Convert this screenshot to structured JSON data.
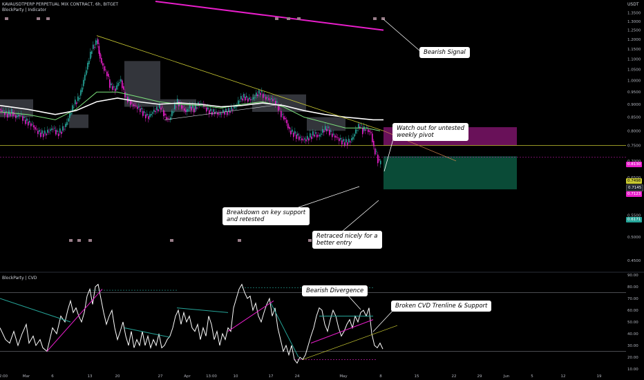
{
  "header": {
    "symbol": "KAVAUSDTPERP PERPETUAL MIX CONTRACT, 6h, BITGET",
    "indicator": "BlockParty | Indicator",
    "currency": "USDT"
  },
  "sub_header": "BlockParty | CVD",
  "annotations": {
    "bearish_signal": "Bearish Signal",
    "watch_out_1": "Watch out for untested",
    "watch_out_2": "weekly pivot",
    "breakdown_1": "Breakdown on key support",
    "breakdown_2": "and retested",
    "retraced_1": "Retraced nicely for a",
    "retraced_2": "better entry",
    "bearish_divergence": "Bearish Divergence",
    "broken_cvd": "Broken CVD Trenline & Support"
  },
  "price_labels": {
    "upper": "0.8130",
    "key_level": "0.7498",
    "last": "0.7145",
    "current": "0.7123",
    "target": "0.6171"
  },
  "colors": {
    "bull": "#26a69a",
    "bear": "#e91ecb",
    "ma": "#ffffff",
    "ma2": "#7ee57e",
    "trend": "#c8c832",
    "signal": "#e91ecb",
    "short_zone": "#7b1468",
    "target_zone": "#0b4f3a"
  },
  "chart_data": [
    {
      "type": "candlestick",
      "title": "KAVAUSDTPERP PERPETUAL MIX CONTRACT, 6h, BITGET",
      "ylabel": "USDT",
      "y_scale": "log",
      "ylim": [
        0.43,
        1.42
      ],
      "y_ticks": [
        1.35,
        1.3,
        1.25,
        1.2,
        1.15,
        1.1,
        1.05,
        1.0,
        0.95,
        0.9,
        0.85,
        0.8,
        0.75,
        0.7,
        0.65,
        0.6,
        0.55,
        0.5,
        0.45
      ],
      "x_ticks": [
        "2:00",
        "Mar",
        "6",
        "13",
        "20",
        "27",
        "Apr",
        "13:00",
        "10",
        "17",
        "24",
        "May",
        "8",
        "15",
        "22",
        "29",
        "Jun",
        "5",
        "12",
        "19"
      ],
      "price_path": [
        [
          0,
          0.88
        ],
        [
          6,
          0.87
        ],
        [
          12,
          0.86
        ],
        [
          18,
          0.87
        ],
        [
          24,
          0.85
        ],
        [
          30,
          0.86
        ],
        [
          36,
          0.84
        ],
        [
          42,
          0.83
        ],
        [
          48,
          0.82
        ],
        [
          54,
          0.8
        ],
        [
          60,
          0.79
        ],
        [
          66,
          0.79
        ],
        [
          72,
          0.8
        ],
        [
          78,
          0.81
        ],
        [
          84,
          0.79
        ],
        [
          90,
          0.8
        ],
        [
          96,
          0.82
        ],
        [
          102,
          0.86
        ],
        [
          108,
          0.9
        ],
        [
          114,
          0.92
        ],
        [
          118,
          0.95
        ],
        [
          122,
          1.0
        ],
        [
          126,
          1.05
        ],
        [
          130,
          1.1
        ],
        [
          134,
          1.15
        ],
        [
          138,
          1.17
        ],
        [
          141,
          1.2
        ],
        [
          144,
          1.13
        ],
        [
          148,
          1.08
        ],
        [
          152,
          1.05
        ],
        [
          156,
          1.03
        ],
        [
          160,
          0.98
        ],
        [
          164,
          0.97
        ],
        [
          168,
          0.96
        ],
        [
          172,
          0.99
        ],
        [
          176,
          1.0
        ],
        [
          180,
          0.95
        ],
        [
          186,
          0.92
        ],
        [
          192,
          0.9
        ],
        [
          198,
          0.89
        ],
        [
          204,
          0.88
        ],
        [
          210,
          0.86
        ],
        [
          216,
          0.85
        ],
        [
          222,
          0.87
        ],
        [
          228,
          0.88
        ],
        [
          234,
          0.89
        ],
        [
          240,
          0.85
        ],
        [
          246,
          0.84
        ],
        [
          252,
          0.88
        ],
        [
          258,
          0.91
        ],
        [
          264,
          0.89
        ],
        [
          270,
          0.87
        ],
        [
          276,
          0.89
        ],
        [
          282,
          0.88
        ],
        [
          288,
          0.9
        ],
        [
          294,
          0.9
        ],
        [
          300,
          0.88
        ],
        [
          306,
          0.87
        ],
        [
          312,
          0.87
        ],
        [
          318,
          0.86
        ],
        [
          324,
          0.87
        ],
        [
          330,
          0.87
        ],
        [
          336,
          0.88
        ],
        [
          342,
          0.89
        ],
        [
          348,
          0.92
        ],
        [
          354,
          0.93
        ],
        [
          360,
          0.92
        ],
        [
          366,
          0.92
        ],
        [
          372,
          0.94
        ],
        [
          378,
          0.95
        ],
        [
          384,
          0.93
        ],
        [
          390,
          0.92
        ],
        [
          396,
          0.92
        ],
        [
          402,
          0.9
        ],
        [
          408,
          0.86
        ],
        [
          414,
          0.84
        ],
        [
          420,
          0.8
        ],
        [
          426,
          0.79
        ],
        [
          432,
          0.78
        ],
        [
          438,
          0.77
        ],
        [
          444,
          0.77
        ],
        [
          450,
          0.78
        ],
        [
          456,
          0.79
        ],
        [
          462,
          0.78
        ],
        [
          468,
          0.8
        ],
        [
          474,
          0.81
        ],
        [
          480,
          0.79
        ],
        [
          486,
          0.78
        ],
        [
          492,
          0.77
        ],
        [
          498,
          0.76
        ],
        [
          504,
          0.76
        ],
        [
          510,
          0.77
        ],
        [
          514,
          0.79
        ],
        [
          518,
          0.81
        ],
        [
          522,
          0.82
        ],
        [
          526,
          0.8
        ],
        [
          530,
          0.81
        ],
        [
          534,
          0.8
        ],
        [
          538,
          0.79
        ],
        [
          542,
          0.74
        ],
        [
          546,
          0.72
        ],
        [
          550,
          0.69
        ],
        [
          552,
          0.712
        ]
      ],
      "moving_average": [
        [
          0,
          0.895
        ],
        [
          40,
          0.88
        ],
        [
          80,
          0.86
        ],
        [
          110,
          0.875
        ],
        [
          140,
          0.91
        ],
        [
          170,
          0.925
        ],
        [
          200,
          0.91
        ],
        [
          230,
          0.9
        ],
        [
          260,
          0.905
        ],
        [
          290,
          0.9
        ],
        [
          320,
          0.89
        ],
        [
          350,
          0.895
        ],
        [
          380,
          0.905
        ],
        [
          410,
          0.895
        ],
        [
          440,
          0.875
        ],
        [
          470,
          0.86
        ],
        [
          500,
          0.85
        ],
        [
          520,
          0.845
        ],
        [
          540,
          0.84
        ],
        [
          555,
          0.84
        ]
      ],
      "moving_average_2": [
        [
          0,
          0.87
        ],
        [
          40,
          0.86
        ],
        [
          80,
          0.84
        ],
        [
          110,
          0.88
        ],
        [
          140,
          0.95
        ],
        [
          170,
          0.95
        ],
        [
          200,
          0.93
        ],
        [
          230,
          0.91
        ],
        [
          260,
          0.9
        ],
        [
          290,
          0.895
        ],
        [
          320,
          0.885
        ],
        [
          350,
          0.9
        ],
        [
          380,
          0.91
        ],
        [
          410,
          0.89
        ],
        [
          440,
          0.85
        ],
        [
          470,
          0.83
        ],
        [
          500,
          0.81
        ],
        [
          530,
          0.81
        ],
        [
          550,
          0.8
        ]
      ],
      "trendline": [
        [
          140,
          1.22
        ],
        [
          555,
          0.8
        ]
      ],
      "trendline_extension": [
        [
          555,
          0.8
        ],
        [
          660,
          0.7
        ]
      ],
      "bearish_signal_line": [
        [
          225,
          1.42
        ],
        [
          555,
          1.25
        ]
      ],
      "short_zone": {
        "x": [
          555,
          748
        ],
        "y": [
          0.75,
          0.813
        ]
      },
      "target_zone": {
        "x": [
          555,
          748
        ],
        "y": [
          0.6171,
          0.7145
        ]
      },
      "key_level": 0.7498
    },
    {
      "type": "line",
      "title": "BlockParty | CVD",
      "ylim": [
        10,
        90
      ],
      "y_ticks": [
        90,
        80,
        70,
        60,
        50,
        40,
        30,
        20,
        10
      ],
      "series": [
        {
          "values": [
            [
              0,
              45
            ],
            [
              8,
              35
            ],
            [
              14,
              32
            ],
            [
              20,
              42
            ],
            [
              26,
              30
            ],
            [
              32,
              40
            ],
            [
              38,
              48
            ],
            [
              42,
              32
            ],
            [
              48,
              38
            ],
            [
              52,
              30
            ],
            [
              58,
              35
            ],
            [
              62,
              28
            ],
            [
              68,
              25
            ],
            [
              72,
              35
            ],
            [
              76,
              45
            ],
            [
              82,
              40
            ],
            [
              88,
              55
            ],
            [
              94,
              50
            ],
            [
              98,
              60
            ],
            [
              102,
              68
            ],
            [
              106,
              58
            ],
            [
              110,
              62
            ],
            [
              114,
              55
            ],
            [
              118,
              50
            ],
            [
              122,
              58
            ],
            [
              126,
              72
            ],
            [
              130,
              78
            ],
            [
              134,
              65
            ],
            [
              138,
              80
            ],
            [
              142,
              82
            ],
            [
              146,
              70
            ],
            [
              150,
              58
            ],
            [
              154,
              48
            ],
            [
              158,
              55
            ],
            [
              162,
              60
            ],
            [
              166,
              45
            ],
            [
              170,
              35
            ],
            [
              174,
              42
            ],
            [
              178,
              50
            ],
            [
              182,
              38
            ],
            [
              186,
              30
            ],
            [
              190,
              42
            ],
            [
              194,
              28
            ],
            [
              198,
              35
            ],
            [
              202,
              30
            ],
            [
              206,
              42
            ],
            [
              210,
              30
            ],
            [
              214,
              38
            ],
            [
              218,
              28
            ],
            [
              222,
              35
            ],
            [
              226,
              30
            ],
            [
              230,
              40
            ],
            [
              234,
              28
            ],
            [
              238,
              30
            ],
            [
              242,
              35
            ],
            [
              246,
              38
            ],
            [
              250,
              45
            ],
            [
              254,
              55
            ],
            [
              258,
              60
            ],
            [
              262,
              48
            ],
            [
              266,
              58
            ],
            [
              270,
              50
            ],
            [
              274,
              55
            ],
            [
              278,
              45
            ],
            [
              282,
              42
            ],
            [
              286,
              48
            ],
            [
              290,
              35
            ],
            [
              294,
              45
            ],
            [
              298,
              38
            ],
            [
              302,
              55
            ],
            [
              306,
              48
            ],
            [
              310,
              35
            ],
            [
              314,
              42
            ],
            [
              318,
              30
            ],
            [
              322,
              40
            ],
            [
              326,
              35
            ],
            [
              330,
              45
            ],
            [
              334,
              42
            ],
            [
              338,
              62
            ],
            [
              342,
              70
            ],
            [
              346,
              78
            ],
            [
              350,
              82
            ],
            [
              354,
              75
            ],
            [
              358,
              70
            ],
            [
              362,
              72
            ],
            [
              366,
              60
            ],
            [
              370,
              66
            ],
            [
              374,
              55
            ],
            [
              378,
              50
            ],
            [
              382,
              58
            ],
            [
              386,
              65
            ],
            [
              390,
              70
            ],
            [
              394,
              55
            ],
            [
              398,
              62
            ],
            [
              402,
              45
            ],
            [
              406,
              35
            ],
            [
              410,
              25
            ],
            [
              414,
              30
            ],
            [
              418,
              22
            ],
            [
              422,
              30
            ],
            [
              426,
              18
            ],
            [
              430,
              15
            ],
            [
              434,
              20
            ],
            [
              438,
              18
            ],
            [
              442,
              22
            ],
            [
              446,
              30
            ],
            [
              450,
              38
            ],
            [
              454,
              45
            ],
            [
              458,
              55
            ],
            [
              462,
              62
            ],
            [
              466,
              60
            ],
            [
              470,
              48
            ],
            [
              474,
              42
            ],
            [
              478,
              52
            ],
            [
              482,
              60
            ],
            [
              486,
              55
            ],
            [
              490,
              45
            ],
            [
              494,
              38
            ],
            [
              498,
              42
            ],
            [
              502,
              48
            ],
            [
              506,
              52
            ],
            [
              510,
              45
            ],
            [
              514,
              55
            ],
            [
              518,
              50
            ],
            [
              522,
              58
            ],
            [
              526,
              60
            ],
            [
              530,
              55
            ],
            [
              534,
              62
            ],
            [
              538,
              40
            ],
            [
              542,
              30
            ],
            [
              546,
              28
            ],
            [
              550,
              32
            ],
            [
              554,
              27
            ]
          ]
        }
      ],
      "overbought": 75,
      "support": 25
    }
  ]
}
